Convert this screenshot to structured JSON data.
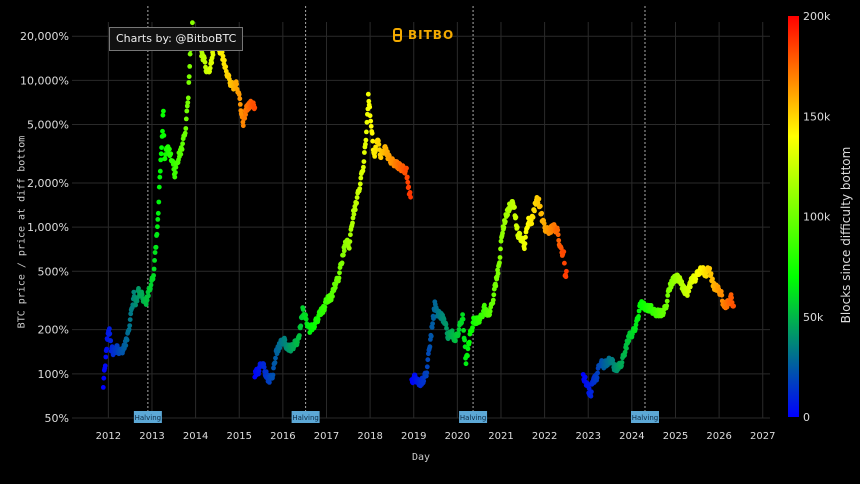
{
  "credit": "Charts by: @BitboBTC",
  "brand": "BITBO",
  "chart_data": {
    "type": "scatter",
    "xlabel": "Day",
    "ylabel": "BTC price / price at diff bottom",
    "y_scale": "log",
    "xlim": [
      "2011-03-01",
      "2027-03-01"
    ],
    "ylim": [
      50,
      25000
    ],
    "x_ticks": [
      "2012",
      "2013",
      "2014",
      "2015",
      "2016",
      "2017",
      "2018",
      "2019",
      "2020",
      "2021",
      "2022",
      "2023",
      "2024",
      "2025",
      "2026",
      "2027"
    ],
    "y_ticks": [
      {
        "value": 50,
        "label": "50%"
      },
      {
        "value": 100,
        "label": "100%"
      },
      {
        "value": 200,
        "label": "200%"
      },
      {
        "value": 500,
        "label": "500%"
      },
      {
        "value": 1000,
        "label": "1,000%"
      },
      {
        "value": 2000,
        "label": "2,000%"
      },
      {
        "value": 5000,
        "label": "5,000%"
      },
      {
        "value": 10000,
        "label": "10,000%"
      },
      {
        "value": 20000,
        "label": "20,000%"
      }
    ],
    "colorbar": {
      "title": "Blocks since difficulty bottom",
      "range": [
        0,
        200000
      ],
      "ticks": [
        {
          "value": 0,
          "label": "0"
        },
        {
          "value": 50000,
          "label": "50k"
        },
        {
          "value": 100000,
          "label": "100k"
        },
        {
          "value": 150000,
          "label": "150k"
        },
        {
          "value": 200000,
          "label": "200k"
        }
      ],
      "colors": [
        "#0000ff",
        "#00ff00",
        "#ffff00",
        "#ff0000"
      ]
    },
    "halvings": [
      {
        "date": "2012-11-28",
        "label": "Halving"
      },
      {
        "date": "2016-07-09",
        "label": "Halving"
      },
      {
        "date": "2020-05-11",
        "label": "Halving"
      },
      {
        "date": "2024-04-20",
        "label": "Halving"
      }
    ],
    "series": [
      {
        "points": [
          [
            "2011-11-20",
            85
          ],
          [
            "2011-12-10",
            130
          ],
          [
            "2011-12-25",
            180
          ],
          [
            "2012-01-10",
            200
          ],
          [
            "2012-01-25",
            150
          ],
          [
            "2012-02-15",
            140
          ],
          [
            "2012-03-10",
            150
          ],
          [
            "2012-04-10",
            140
          ],
          [
            "2012-05-10",
            150
          ],
          [
            "2012-06-10",
            180
          ],
          [
            "2012-07-10",
            260
          ],
          [
            "2012-08-01",
            350
          ],
          [
            "2012-08-20",
            300
          ],
          [
            "2012-09-10",
            370
          ],
          [
            "2012-10-10",
            340
          ],
          [
            "2012-11-10",
            300
          ],
          [
            "2012-12-10",
            380
          ],
          [
            "2013-01-10",
            450
          ],
          [
            "2013-02-01",
            700
          ],
          [
            "2013-02-20",
            1100
          ],
          [
            "2013-03-10",
            2500
          ],
          [
            "2013-03-25",
            4000
          ],
          [
            "2013-04-05",
            6500
          ],
          [
            "2013-04-15",
            3000
          ],
          [
            "2013-05-10",
            3500
          ],
          [
            "2013-06-10",
            3000
          ],
          [
            "2013-07-10",
            2300
          ],
          [
            "2013-08-10",
            3000
          ],
          [
            "2013-09-10",
            3500
          ],
          [
            "2013-10-10",
            4800
          ],
          [
            "2013-11-01",
            8000
          ],
          [
            "2013-11-20",
            17000
          ],
          [
            "2013-12-05",
            24000
          ],
          [
            "2013-12-20",
            19000
          ],
          [
            "2014-01-10",
            20000
          ],
          [
            "2014-02-01",
            22000
          ],
          [
            "2014-02-20",
            15000
          ],
          [
            "2014-03-10",
            14000
          ],
          [
            "2014-04-10",
            11000
          ],
          [
            "2014-05-10",
            13000
          ],
          [
            "2014-06-10",
            19000
          ],
          [
            "2014-07-10",
            17000
          ],
          [
            "2014-08-10",
            15000
          ],
          [
            "2014-09-10",
            12000
          ],
          [
            "2014-10-10",
            10000
          ],
          [
            "2014-11-10",
            9000
          ],
          [
            "2014-12-10",
            9500
          ],
          [
            "2015-01-10",
            7000
          ],
          [
            "2015-02-01",
            5000
          ],
          [
            "2015-03-01",
            6500
          ],
          [
            "2015-04-10",
            7000
          ],
          [
            "2015-05-10",
            6500
          ]
        ]
      },
      {
        "points": [
          [
            "2015-05-10",
            100
          ],
          [
            "2015-06-10",
            105
          ],
          [
            "2015-07-10",
            120
          ],
          [
            "2015-08-10",
            100
          ],
          [
            "2015-09-10",
            90
          ],
          [
            "2015-10-10",
            100
          ],
          [
            "2015-11-05",
            140
          ],
          [
            "2015-12-10",
            160
          ],
          [
            "2016-01-10",
            170
          ],
          [
            "2016-02-10",
            150
          ],
          [
            "2016-03-10",
            150
          ],
          [
            "2016-04-10",
            160
          ],
          [
            "2016-05-10",
            170
          ],
          [
            "2016-06-15",
            270
          ],
          [
            "2016-07-10",
            240
          ],
          [
            "2016-08-10",
            200
          ],
          [
            "2016-09-10",
            210
          ],
          [
            "2016-10-10",
            230
          ],
          [
            "2016-11-10",
            260
          ],
          [
            "2016-12-10",
            280
          ],
          [
            "2017-01-05",
            320
          ],
          [
            "2017-02-10",
            330
          ],
          [
            "2017-03-10",
            400
          ],
          [
            "2017-04-10",
            450
          ],
          [
            "2017-05-10",
            600
          ],
          [
            "2017-06-10",
            800
          ],
          [
            "2017-07-10",
            750
          ],
          [
            "2017-08-10",
            1200
          ],
          [
            "2017-09-10",
            1500
          ],
          [
            "2017-10-10",
            2000
          ],
          [
            "2017-11-10",
            2800
          ],
          [
            "2017-12-05",
            5000
          ],
          [
            "2017-12-17",
            7800
          ],
          [
            "2018-01-01",
            6000
          ],
          [
            "2018-01-15",
            4500
          ],
          [
            "2018-02-05",
            3000
          ],
          [
            "2018-03-01",
            4000
          ],
          [
            "2018-04-01",
            3000
          ],
          [
            "2018-05-01",
            3500
          ],
          [
            "2018-06-01",
            3000
          ],
          [
            "2018-07-01",
            2800
          ],
          [
            "2018-08-01",
            2700
          ],
          [
            "2018-09-01",
            2600
          ],
          [
            "2018-10-01",
            2500
          ],
          [
            "2018-11-01",
            2400
          ],
          [
            "2018-11-20",
            1800
          ],
          [
            "2018-12-05",
            1600
          ]
        ]
      },
      {
        "points": [
          [
            "2018-12-15",
            90
          ],
          [
            "2019-01-15",
            95
          ],
          [
            "2019-02-15",
            85
          ],
          [
            "2019-03-15",
            90
          ],
          [
            "2019-04-15",
            100
          ],
          [
            "2019-05-15",
            160
          ],
          [
            "2019-06-15",
            250
          ],
          [
            "2019-06-26",
            300
          ],
          [
            "2019-07-15",
            260
          ],
          [
            "2019-08-15",
            250
          ],
          [
            "2019-09-15",
            230
          ],
          [
            "2019-10-15",
            180
          ],
          [
            "2019-11-15",
            190
          ],
          [
            "2019-12-15",
            170
          ],
          [
            "2020-01-15",
            200
          ],
          [
            "2020-02-15",
            250
          ],
          [
            "2020-03-13",
            120
          ],
          [
            "2020-04-15",
            180
          ],
          [
            "2020-05-15",
            230
          ],
          [
            "2020-06-15",
            230
          ],
          [
            "2020-07-15",
            240
          ],
          [
            "2020-08-15",
            280
          ],
          [
            "2020-09-15",
            250
          ],
          [
            "2020-10-15",
            290
          ],
          [
            "2020-11-15",
            400
          ],
          [
            "2020-12-15",
            550
          ],
          [
            "2021-01-10",
            900
          ],
          [
            "2021-02-15",
            1200
          ],
          [
            "2021-03-15",
            1400
          ],
          [
            "2021-04-15",
            1450
          ],
          [
            "2021-05-20",
            900
          ],
          [
            "2021-06-15",
            850
          ],
          [
            "2021-07-15",
            750
          ],
          [
            "2021-08-15",
            1100
          ],
          [
            "2021-09-15",
            1100
          ],
          [
            "2021-10-20",
            1500
          ],
          [
            "2021-11-10",
            1550
          ],
          [
            "2021-12-15",
            1100
          ],
          [
            "2022-01-15",
            950
          ],
          [
            "2022-02-15",
            950
          ],
          [
            "2022-03-15",
            1000
          ],
          [
            "2022-04-15",
            950
          ],
          [
            "2022-05-15",
            700
          ],
          [
            "2022-06-10",
            650
          ],
          [
            "2022-06-20",
            450
          ],
          [
            "2022-07-01",
            500
          ]
        ]
      },
      {
        "points": [
          [
            "2022-11-20",
            95
          ],
          [
            "2022-12-10",
            90
          ],
          [
            "2023-01-01",
            80
          ],
          [
            "2023-01-20",
            70
          ],
          [
            "2023-02-10",
            90
          ],
          [
            "2023-03-10",
            95
          ],
          [
            "2023-04-10",
            120
          ],
          [
            "2023-05-10",
            115
          ],
          [
            "2023-06-10",
            120
          ],
          [
            "2023-07-10",
            125
          ],
          [
            "2023-08-10",
            110
          ],
          [
            "2023-09-10",
            110
          ],
          [
            "2023-10-10",
            120
          ],
          [
            "2023-11-10",
            150
          ],
          [
            "2023-12-10",
            180
          ],
          [
            "2024-01-10",
            190
          ],
          [
            "2024-02-10",
            220
          ],
          [
            "2024-03-14",
            300
          ],
          [
            "2024-04-10",
            290
          ],
          [
            "2024-05-10",
            280
          ],
          [
            "2024-06-10",
            280
          ],
          [
            "2024-07-10",
            260
          ],
          [
            "2024-08-10",
            260
          ],
          [
            "2024-09-10",
            260
          ],
          [
            "2024-10-10",
            280
          ],
          [
            "2024-11-10",
            380
          ],
          [
            "2024-12-15",
            440
          ],
          [
            "2025-01-20",
            460
          ],
          [
            "2025-02-15",
            420
          ],
          [
            "2025-03-15",
            370
          ],
          [
            "2025-04-10",
            360
          ],
          [
            "2025-05-15",
            440
          ],
          [
            "2025-06-15",
            450
          ],
          [
            "2025-07-15",
            500
          ],
          [
            "2025-08-15",
            510
          ],
          [
            "2025-09-15",
            480
          ],
          [
            "2025-10-06",
            530
          ],
          [
            "2025-11-15",
            400
          ],
          [
            "2025-12-15",
            380
          ],
          [
            "2026-01-15",
            360
          ],
          [
            "2026-02-10",
            290
          ],
          [
            "2026-03-10",
            300
          ],
          [
            "2026-04-10",
            330
          ],
          [
            "2026-05-01",
            290
          ]
        ]
      }
    ]
  }
}
